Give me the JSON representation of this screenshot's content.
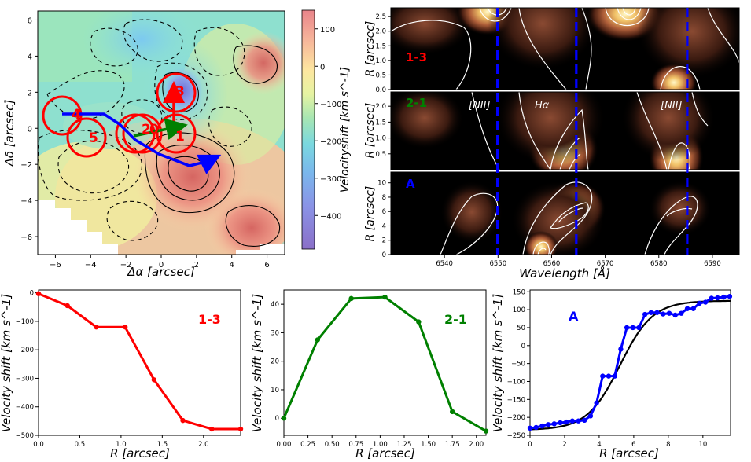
{
  "chart_data": [
    {
      "id": "velocity_map",
      "type": "heatmap",
      "xlabel": "Δα [arcsec]",
      "ylabel": "Δδ [arcsec]",
      "xlim": [
        -7,
        7
      ],
      "ylim": [
        -7,
        6.5
      ],
      "xticks": [
        -6,
        -4,
        -2,
        0,
        2,
        4,
        6
      ],
      "yticks": [
        -6,
        -4,
        -2,
        0,
        2,
        4,
        6
      ],
      "colorbar": {
        "label": "Velocityshift [km s^-1]",
        "range": [
          -490,
          150
        ],
        "ticks": [
          100,
          0,
          -100,
          -200,
          -300,
          -400
        ],
        "tick_labels": [
          "100",
          "0",
          "−100",
          "−200",
          "−300",
          "−400"
        ]
      },
      "apertures": [
        {
          "label": "4",
          "x": -5.6,
          "y": 0.8
        },
        {
          "label": "5",
          "x": -4.2,
          "y": -0.3
        },
        {
          "label": "2",
          "x": -1.3,
          "y": -0.1
        },
        {
          "label": "0",
          "x": -0.9,
          "y": -0.1
        },
        {
          "label": "1",
          "x": 0.7,
          "y": -0.1
        },
        {
          "label": "3",
          "x": 0.8,
          "y": 2.4
        }
      ],
      "path_A": [
        [
          -5.5,
          0.9
        ],
        [
          -3.3,
          0.9
        ],
        [
          -2.4,
          0.4
        ],
        [
          -1.6,
          -0.5
        ],
        [
          -0.2,
          -1.4
        ],
        [
          1.5,
          -2.1
        ],
        [
          2.7,
          -1.8
        ],
        [
          3.1,
          -1.6
        ]
      ],
      "arrow_1_3": {
        "from": [
          0.8,
          -0.4
        ],
        "to": [
          0.8,
          2.2
        ]
      },
      "arrow_2_1": {
        "from": [
          -1.4,
          -0.2
        ],
        "to": [
          1.3,
          0.4
        ]
      }
    },
    {
      "id": "spectrum_panels",
      "type": "heatmap",
      "xlabel": "Wavelength [Å]",
      "xlim": [
        6530,
        6595
      ],
      "xticks": [
        6540,
        6550,
        6560,
        6570,
        6580,
        6590
      ],
      "reference_lines": [
        6549.9,
        6564.6,
        6585.3
      ],
      "panels": [
        {
          "label": "1-3",
          "color": "#ff0000",
          "ylabel": "R [arcsec]",
          "ylim": [
            0,
            2.8
          ],
          "yticks": [
            "0.0",
            "0.5",
            "1.0",
            "1.5",
            "2.0",
            "2.5"
          ]
        },
        {
          "label": "2-1",
          "color": "#008000",
          "ylabel": "R [arcsec]",
          "ylim": [
            0,
            2.45
          ],
          "yticks": [
            "0.5",
            "1.0",
            "1.5",
            "2.0"
          ],
          "line_labels": [
            "[NII]",
            "Hα",
            "[NII]"
          ]
        },
        {
          "label": "A",
          "color": "#0000ff",
          "ylabel": "R [arcsec]",
          "ylim": [
            0,
            11.5
          ],
          "yticks": [
            "0",
            "2",
            "4",
            "6",
            "8",
            "10"
          ]
        }
      ]
    },
    {
      "id": "rotation_1_3",
      "type": "line",
      "label": "1-3",
      "color": "#ff0000",
      "xlabel": "R [arcsec]",
      "ylabel": "Velocity shift [km s^-1]",
      "xlim": [
        0,
        2.45
      ],
      "ylim": [
        -500,
        10
      ],
      "xticks": [
        0.0,
        0.5,
        1.0,
        1.5,
        2.0
      ],
      "yticks": [
        0,
        -100,
        -200,
        -300,
        -400,
        -500
      ],
      "x": [
        0.0,
        0.35,
        0.7,
        1.05,
        1.4,
        1.75,
        2.1,
        2.45
      ],
      "y": [
        -3,
        -45,
        -120,
        -120,
        -305,
        -448,
        -478,
        -478
      ]
    },
    {
      "id": "rotation_2_1",
      "type": "line",
      "label": "2-1",
      "color": "#008000",
      "xlabel": "R [arcsec]",
      "ylabel": "Velocity shift [km s^-1]",
      "xlim": [
        0,
        2.1
      ],
      "ylim": [
        -6,
        45
      ],
      "xticks": [
        0.0,
        0.25,
        0.5,
        0.75,
        1.0,
        1.25,
        1.5,
        1.75,
        2.0
      ],
      "yticks": [
        0,
        10,
        20,
        30,
        40
      ],
      "x": [
        0.0,
        0.35,
        0.7,
        1.05,
        1.4,
        1.75,
        2.1
      ],
      "y": [
        0,
        27.5,
        42,
        42.5,
        33.8,
        2.3,
        -4.5
      ]
    },
    {
      "id": "rotation_A",
      "type": "line",
      "label": "A",
      "color": "#0000ff",
      "xlabel": "R [arcsec]",
      "ylabel": "Velocity shift [km s^-1]",
      "xlim": [
        0,
        11.6
      ],
      "ylim": [
        -250,
        155
      ],
      "xticks": [
        0,
        2,
        4,
        6,
        8,
        10
      ],
      "yticks": [
        150,
        100,
        50,
        0,
        -50,
        -100,
        -150,
        -200,
        -250
      ],
      "x": [
        0.0,
        0.35,
        0.7,
        1.05,
        1.4,
        1.75,
        2.1,
        2.45,
        2.8,
        3.15,
        3.5,
        3.85,
        4.2,
        4.55,
        4.9,
        5.25,
        5.6,
        5.95,
        6.3,
        6.65,
        7.0,
        7.35,
        7.7,
        8.05,
        8.4,
        8.75,
        9.1,
        9.45,
        9.8,
        10.15,
        10.5,
        10.85,
        11.2,
        11.55
      ],
      "y": [
        -230,
        -228,
        -224,
        -220,
        -218,
        -215,
        -213,
        -210,
        -210,
        -208,
        -196,
        -160,
        -85,
        -85,
        -85,
        -10,
        50,
        50,
        50,
        87,
        92,
        92,
        88,
        90,
        85,
        90,
        103,
        103,
        118,
        121,
        132,
        133,
        135,
        137
      ],
      "fit": {
        "v0": -235,
        "vmax": 360,
        "r0": 5.2,
        "width": 0.95
      }
    }
  ]
}
